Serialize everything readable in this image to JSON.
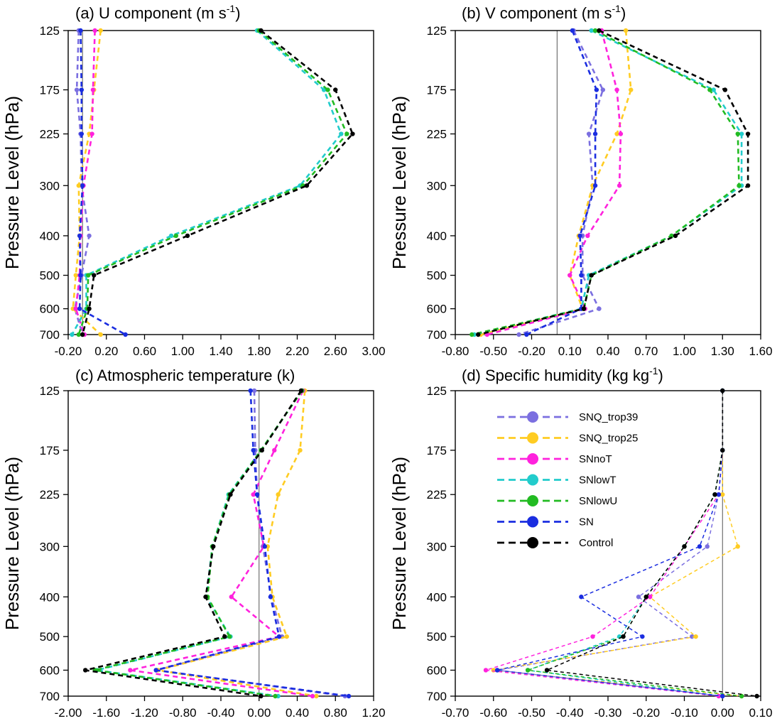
{
  "legend": {
    "placement": "upper-left of panel (d)",
    "entries": [
      "SNQ_trop39",
      "SNQ_trop25",
      "SNnoT",
      "SNlowT",
      "SNlowU",
      "SN",
      "Control"
    ]
  },
  "colors": {
    "SNQ_trop39": "#7b6fe0",
    "SNQ_trop25": "#ffcc22",
    "SNnoT": "#ff22dd",
    "SNlowT": "#22cccc",
    "SNlowU": "#22bb22",
    "SN": "#1a2de0",
    "Control": "#000000"
  },
  "chart_data": [
    {
      "type": "line",
      "panel": "a",
      "title": "(a) U component (m s",
      "title_sup": "-1",
      "title_end": ")",
      "ylabel": "Pressure Level (hPa)",
      "y_levels": [
        125,
        175,
        225,
        300,
        400,
        500,
        600,
        700
      ],
      "y_ticks": [
        "125",
        "175",
        "225",
        "300",
        "400",
        "500",
        "600",
        "700"
      ],
      "x_ticks": [
        "-0.20",
        "0.20",
        "0.60",
        "1.00",
        "1.40",
        "1.80",
        "2.20",
        "2.60",
        "3.00"
      ],
      "xlim": [
        -0.2,
        3.0
      ],
      "zero_line": -0.05,
      "series": [
        {
          "name": "SNQ_trop39",
          "values": [
            -0.09,
            -0.11,
            -0.07,
            -0.06,
            0.02,
            -0.06,
            -0.13,
            -0.05
          ]
        },
        {
          "name": "SNQ_trop25",
          "values": [
            0.14,
            0.07,
            0.02,
            -0.09,
            -0.08,
            -0.12,
            -0.15,
            0.14
          ]
        },
        {
          "name": "SNnoT",
          "values": [
            0.08,
            0.06,
            0.05,
            -0.04,
            -0.07,
            -0.08,
            -0.12,
            -0.03
          ]
        },
        {
          "name": "SNlowT",
          "values": [
            1.78,
            2.48,
            2.66,
            2.23,
            0.88,
            -0.01,
            -0.01,
            -0.16
          ]
        },
        {
          "name": "SNlowU",
          "values": [
            1.8,
            2.52,
            2.72,
            2.26,
            0.93,
            0.01,
            0.0,
            -0.09
          ]
        },
        {
          "name": "SN",
          "values": [
            -0.07,
            -0.06,
            -0.06,
            -0.05,
            -0.08,
            -0.07,
            -0.08,
            0.4
          ]
        },
        {
          "name": "Control",
          "values": [
            1.82,
            2.6,
            2.78,
            2.3,
            1.05,
            0.07,
            0.02,
            -0.05
          ]
        }
      ]
    },
    {
      "type": "line",
      "panel": "b",
      "title": "(b) V component (m s",
      "title_sup": "-1",
      "title_end": ")",
      "ylabel": "Pressure Level (hPa)",
      "y_levels": [
        125,
        175,
        225,
        300,
        400,
        500,
        600,
        700
      ],
      "y_ticks": [
        "125",
        "175",
        "225",
        "300",
        "400",
        "500",
        "600",
        "700"
      ],
      "x_ticks": [
        "-0.80",
        "-0.50",
        "-0.20",
        "0.10",
        "0.40",
        "0.70",
        "1.00",
        "1.30",
        "1.60"
      ],
      "xlim": [
        -0.8,
        1.6
      ],
      "zero_line": 0.0,
      "series": [
        {
          "name": "SNQ_trop39",
          "values": [
            0.13,
            0.36,
            0.25,
            0.28,
            0.2,
            0.2,
            0.33,
            -0.3
          ]
        },
        {
          "name": "SNQ_trop25",
          "values": [
            0.54,
            0.58,
            0.47,
            0.28,
            0.17,
            0.1,
            0.2,
            -0.6
          ]
        },
        {
          "name": "SNnoT",
          "values": [
            0.35,
            0.47,
            0.5,
            0.49,
            0.24,
            0.1,
            0.22,
            -0.55
          ]
        },
        {
          "name": "SNlowT",
          "values": [
            0.27,
            1.23,
            1.45,
            1.45,
            0.9,
            0.25,
            0.19,
            -0.65
          ]
        },
        {
          "name": "SNlowU",
          "values": [
            0.3,
            1.2,
            1.42,
            1.43,
            0.9,
            0.27,
            0.21,
            -0.67
          ]
        },
        {
          "name": "SN",
          "values": [
            0.12,
            0.31,
            0.3,
            0.3,
            0.18,
            0.19,
            0.19,
            -0.24
          ]
        },
        {
          "name": "Control",
          "values": [
            0.33,
            1.32,
            1.5,
            1.5,
            0.93,
            0.27,
            0.21,
            -0.62
          ]
        }
      ]
    },
    {
      "type": "line",
      "panel": "c",
      "title": "(c) Atmospheric temperature (k)",
      "title_sup": "",
      "title_end": "",
      "ylabel": "Pressure Level (hPa)",
      "y_levels": [
        125,
        175,
        225,
        300,
        400,
        500,
        600,
        700
      ],
      "y_ticks": [
        "125",
        "175",
        "225",
        "300",
        "400",
        "500",
        "600",
        "700"
      ],
      "x_ticks": [
        "-2.00",
        "-1.60",
        "-1.20",
        "-0.80",
        "-0.40",
        "0.00",
        "0.40",
        "0.80",
        "1.20"
      ],
      "xlim": [
        -2.0,
        1.2
      ],
      "zero_line": 0.0,
      "series": [
        {
          "name": "SNQ_trop39",
          "values": [
            -0.05,
            -0.04,
            -0.02,
            0.04,
            0.13,
            0.24,
            -1.07,
            0.9
          ]
        },
        {
          "name": "SNQ_trop25",
          "values": [
            0.48,
            0.43,
            0.2,
            0.09,
            0.14,
            0.29,
            -1.06,
            0.6
          ]
        },
        {
          "name": "SNnoT",
          "values": [
            0.46,
            0.16,
            -0.06,
            0.05,
            -0.29,
            0.21,
            -1.35,
            0.56
          ]
        },
        {
          "name": "SNlowT",
          "values": [
            0.45,
            0.02,
            -0.32,
            -0.49,
            -0.55,
            -0.3,
            -1.7,
            0.2
          ]
        },
        {
          "name": "SNlowU",
          "values": [
            0.45,
            0.02,
            -0.31,
            -0.49,
            -0.54,
            -0.31,
            -1.72,
            0.17
          ]
        },
        {
          "name": "SN",
          "values": [
            -0.09,
            -0.06,
            -0.02,
            0.06,
            0.12,
            0.21,
            -1.08,
            0.94
          ]
        },
        {
          "name": "Control",
          "values": [
            0.44,
            0.03,
            -0.3,
            -0.48,
            -0.56,
            -0.36,
            -1.82,
            0.02
          ]
        }
      ]
    },
    {
      "type": "line",
      "panel": "d",
      "title": "(d) Specific humidity (kg kg",
      "title_sup": "-1",
      "title_end": ")",
      "ylabel": "Pressure Level (hPa)",
      "y_levels": [
        125,
        175,
        225,
        300,
        400,
        500,
        600,
        700
      ],
      "y_ticks": [
        "125",
        "175",
        "225",
        "300",
        "400",
        "500",
        "600",
        "700"
      ],
      "x_ticks": [
        "-0.70",
        "-0.60",
        "-0.50",
        "-0.40",
        "-0.30",
        "-0.20",
        "-0.10",
        "0.00",
        "0.10"
      ],
      "xlim": [
        -0.7,
        0.1
      ],
      "zero_line": 0.0,
      "series": [
        {
          "name": "SNQ_trop39",
          "values": [
            0.0,
            0.0,
            -0.01,
            -0.04,
            -0.22,
            -0.08,
            -0.59,
            0.0
          ]
        },
        {
          "name": "SNQ_trop25",
          "values": [
            0.0,
            0.0,
            0.0,
            0.04,
            -0.19,
            -0.07,
            -0.6,
            0.05
          ]
        },
        {
          "name": "SNnoT",
          "values": [
            0.0,
            0.0,
            -0.01,
            -0.1,
            -0.19,
            -0.34,
            -0.62,
            -0.01
          ]
        },
        {
          "name": "SNlowT",
          "values": [
            0.0,
            0.0,
            -0.02,
            -0.1,
            -0.2,
            -0.27,
            -0.51,
            0.0
          ]
        },
        {
          "name": "SNlowU",
          "values": [
            0.0,
            0.0,
            -0.02,
            -0.1,
            -0.2,
            -0.26,
            -0.51,
            0.05
          ]
        },
        {
          "name": "SN",
          "values": [
            0.0,
            0.0,
            -0.01,
            -0.06,
            -0.37,
            -0.21,
            -0.59,
            0.0
          ]
        },
        {
          "name": "Control",
          "values": [
            0.0,
            0.0,
            -0.02,
            -0.1,
            -0.2,
            -0.26,
            -0.46,
            0.09
          ]
        }
      ]
    }
  ]
}
